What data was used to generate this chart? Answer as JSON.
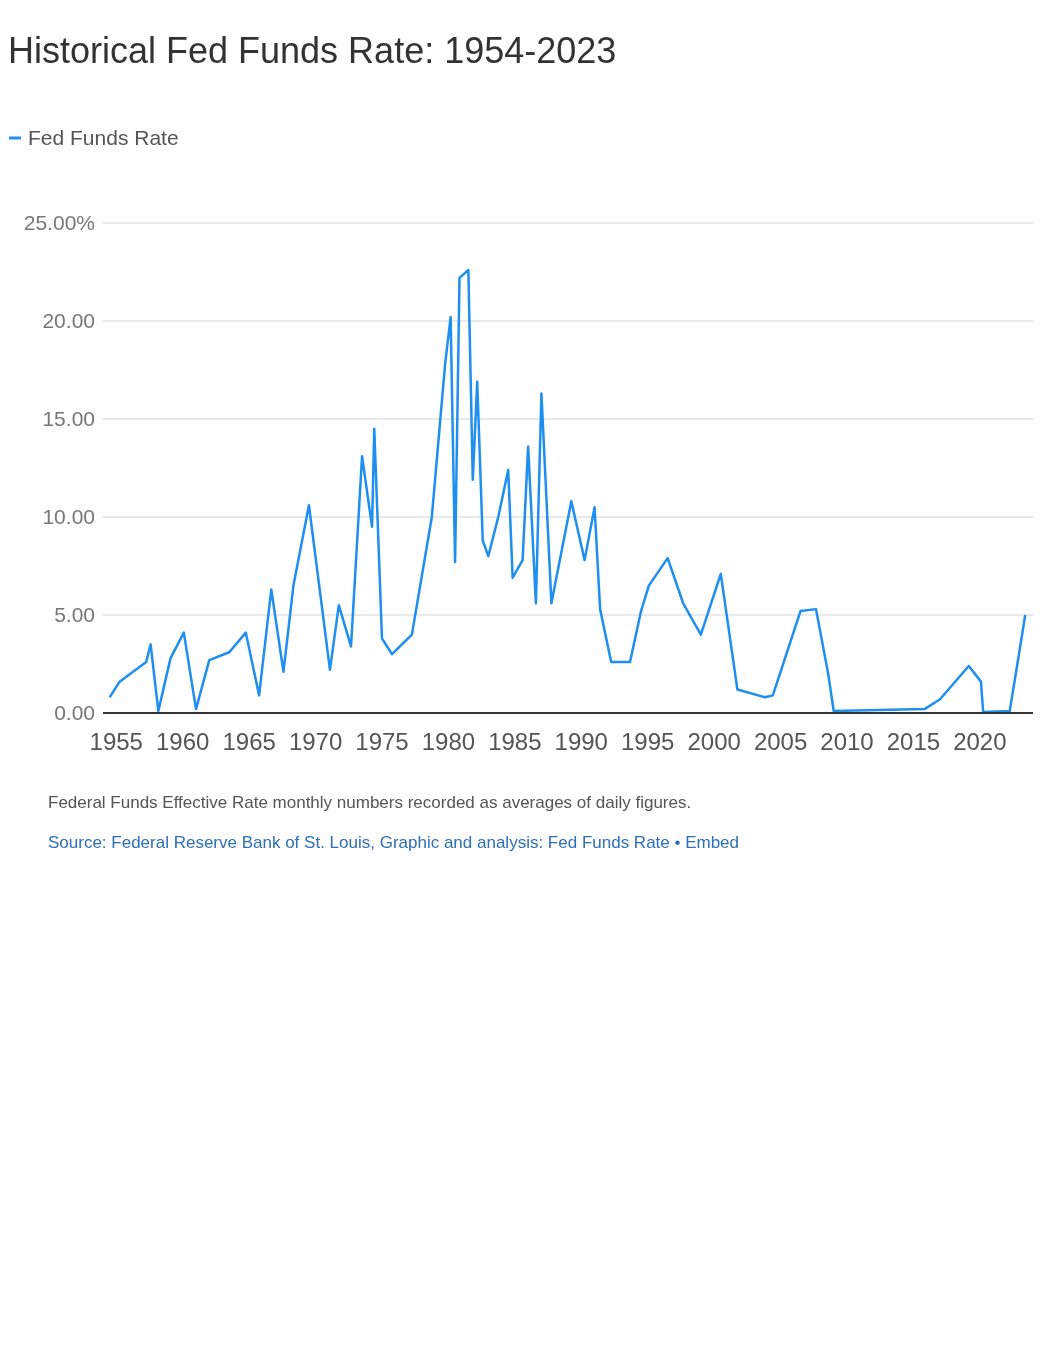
{
  "chart_data": {
    "type": "line",
    "title": "Historical Fed Funds Rate: 1954-2023",
    "annotations": [
      "Federal Funds Effective Rate monthly numbers recorded as averages of daily figures.",
      "Source: Federal Reserve Bank of St. Louis, Graphic and analysis: Fed Funds Rate • Embed"
    ],
    "x": [
      "1954-07",
      "1955-04",
      "1957-04",
      "1957-08",
      "1958-03",
      "1959-02",
      "1960-02",
      "1961-01",
      "1962-01",
      "1963-07",
      "1964-10",
      "1965-10",
      "1966-09",
      "1967-08",
      "1968-05",
      "1969-07",
      "1971-02",
      "1971-10",
      "1972-09",
      "1973-07",
      "1974-04",
      "1974-06",
      "1975-01",
      "1975-10",
      "1977-04",
      "1978-10",
      "1979-10",
      "1980-03",
      "1980-07",
      "1980-11",
      "1981-07",
      "1981-11",
      "1982-03",
      "1982-08",
      "1983-01",
      "1983-10",
      "1984-07",
      "1984-11",
      "1985-08",
      "1986-01",
      "1986-08",
      "1987-01",
      "1987-10",
      "1989-04",
      "1990-04",
      "1991-01",
      "1991-06",
      "1992-04",
      "1993-09",
      "1994-07",
      "1995-02",
      "1996-07",
      "1997-09",
      "1999-01",
      "2000-07",
      "2001-10",
      "2003-11",
      "2004-06",
      "2006-07",
      "2007-09",
      "2008-08",
      "2009-01",
      "2015-11",
      "2017-01",
      "2019-03",
      "2020-02",
      "2020-04",
      "2022-04",
      "2023-06"
    ],
    "series": [
      {
        "name": "Fed Funds Rate",
        "color": "#1e8ff0",
        "values": [
          0.8,
          1.6,
          2.6,
          3.5,
          0.1,
          2.8,
          4.1,
          0.2,
          2.7,
          3.1,
          4.1,
          0.9,
          6.3,
          2.1,
          6.5,
          10.6,
          2.2,
          5.5,
          3.4,
          13.1,
          9.5,
          14.5,
          3.8,
          3.0,
          4.0,
          10.0,
          17.8,
          20.2,
          7.7,
          22.2,
          22.6,
          11.9,
          16.9,
          8.8,
          8.0,
          10.0,
          12.4,
          6.9,
          7.8,
          13.6,
          5.6,
          16.3,
          5.6,
          10.8,
          7.8,
          10.5,
          5.3,
          2.6,
          2.6,
          5.2,
          6.5,
          7.9,
          5.6,
          4.0,
          7.1,
          1.2,
          0.8,
          0.9,
          5.2,
          5.3,
          2.0,
          0.1,
          0.2,
          0.7,
          2.4,
          1.6,
          0.05,
          0.1,
          5.0
        ]
      }
    ],
    "xlim": [
      "1954-01",
      "2024-01"
    ],
    "xticks": [
      "1955",
      "1960",
      "1965",
      "1970",
      "1975",
      "1980",
      "1985",
      "1990",
      "1995",
      "2000",
      "2005",
      "2010",
      "2015",
      "2020"
    ],
    "ylim": [
      0,
      25
    ],
    "yticks": [
      {
        "value": 0,
        "label": "0.00"
      },
      {
        "value": 5,
        "label": "5.00"
      },
      {
        "value": 10,
        "label": "10.00"
      },
      {
        "value": 15,
        "label": "15.00"
      },
      {
        "value": 20,
        "label": "20.00"
      },
      {
        "value": 25,
        "label": "25.00%"
      }
    ],
    "grid": "y",
    "legend": "top left"
  }
}
